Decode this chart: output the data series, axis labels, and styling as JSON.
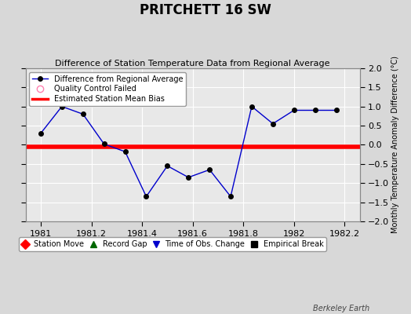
{
  "title": "PRITCHETT 16 SW",
  "subtitle": "Difference of Station Temperature Data from Regional Average",
  "ylabel_right": "Monthly Temperature Anomaly Difference (°C)",
  "background_color": "#d8d8d8",
  "plot_bg_color": "#e8e8e8",
  "grid_color": "#ffffff",
  "x_values": [
    1981.0,
    1981.0833,
    1981.1667,
    1981.25,
    1981.3333,
    1981.4167,
    1981.5,
    1981.5833,
    1981.6667,
    1981.75,
    1981.8333,
    1981.9167,
    1982.0,
    1982.0833,
    1982.1667
  ],
  "y_values": [
    0.3,
    1.0,
    0.8,
    0.02,
    -0.18,
    -1.35,
    -0.55,
    -0.85,
    -0.65,
    -1.35,
    1.0,
    0.55,
    0.9,
    0.9,
    0.9
  ],
  "line_color": "#0000cc",
  "marker_color": "#000000",
  "marker_size": 4,
  "bias_value": -0.05,
  "bias_color": "#ff0000",
  "bias_linewidth": 4,
  "xlim": [
    1980.94,
    1982.26
  ],
  "ylim": [
    -2,
    2
  ],
  "yticks": [
    -2,
    -1.5,
    -1,
    -0.5,
    0,
    0.5,
    1,
    1.5,
    2
  ],
  "xticks": [
    1981,
    1981.2,
    1981.4,
    1981.6,
    1981.8,
    1982,
    1982.2
  ],
  "xtick_labels": [
    "1981",
    "1981.2",
    "1981.4",
    "1981.6",
    "1981.8",
    "1982",
    "1982.2"
  ],
  "footer_text": "Berkeley Earth",
  "dpi": 100,
  "figsize": [
    5.24,
    4.0
  ]
}
